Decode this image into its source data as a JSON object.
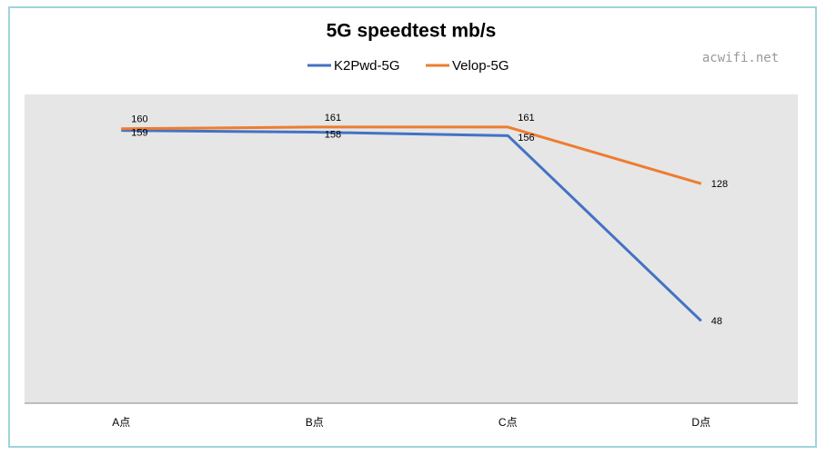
{
  "chart_data": {
    "type": "line",
    "title": "5G speedtest mb/s",
    "categories": [
      "A点",
      "B点",
      "C点",
      "D点"
    ],
    "series": [
      {
        "name": "K2Pwd-5G",
        "color": "#4472c4",
        "values": [
          159,
          158,
          156,
          48
        ]
      },
      {
        "name": "Velop-5G",
        "color": "#ed7d31",
        "values": [
          160,
          161,
          161,
          128
        ]
      }
    ],
    "ylim": [
      0,
      180
    ],
    "legend": "top",
    "watermark": "acwifi.net"
  }
}
